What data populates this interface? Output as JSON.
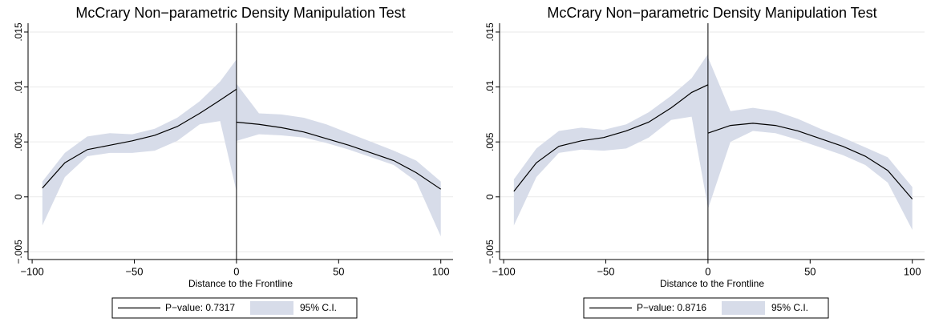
{
  "chart_data": [
    {
      "type": "line",
      "title": "McCrary Non−parametric Density Manipulation Test",
      "x_label": "Distance to the Frontline",
      "x": [
        -95,
        -84,
        -73,
        -62,
        -51,
        -40,
        -29,
        -18,
        -8,
        0,
        0,
        11,
        22,
        33,
        44,
        55,
        66,
        77,
        88,
        100
      ],
      "cutoff": 0,
      "series": [
        {
          "name": "P−value: 0.7317",
          "color": "#000000",
          "values": [
            0.0008,
            0.0031,
            0.0043,
            0.0047,
            0.0051,
            0.0056,
            0.0064,
            0.0076,
            0.0088,
            0.0098,
            0.0068,
            0.0066,
            0.0063,
            0.0059,
            0.0053,
            0.0047,
            0.004,
            0.0033,
            0.0022,
            0.0007
          ]
        },
        {
          "name": "95% C.I.",
          "color": "#d7dce9",
          "lower": [
            -0.0026,
            0.0018,
            0.0037,
            0.004,
            0.004,
            0.0042,
            0.0051,
            0.0066,
            0.0069,
            0.0005,
            0.0051,
            0.0057,
            0.0056,
            0.0054,
            0.0049,
            0.0043,
            0.0036,
            0.0029,
            0.0014,
            -0.0036
          ],
          "upper": [
            0.0014,
            0.004,
            0.0055,
            0.0058,
            0.0057,
            0.0062,
            0.0072,
            0.0087,
            0.0105,
            0.0125,
            0.0103,
            0.0076,
            0.0075,
            0.0072,
            0.0066,
            0.0058,
            0.005,
            0.0042,
            0.0033,
            0.0014
          ]
        }
      ],
      "xlim": [
        -102,
        106
      ],
      "ylim": [
        -0.0057,
        0.0158
      ],
      "xticks": [
        {
          "value": -100,
          "label": "−100"
        },
        {
          "value": -50,
          "label": "−50"
        },
        0,
        50,
        100
      ],
      "yticks": [
        {
          "value": -0.005,
          "label": "−.005"
        },
        0,
        {
          "value": 0.005,
          "label": ".005"
        },
        {
          "value": 0.01,
          "label": ".01"
        },
        {
          "value": 0.015,
          "label": ".015"
        }
      ],
      "grid": true
    },
    {
      "type": "line",
      "title": "McCrary Non−parametric Density Manipulation Test",
      "x_label": "Distance to the Frontline",
      "x": [
        -95,
        -84,
        -73,
        -62,
        -51,
        -40,
        -29,
        -18,
        -8,
        0,
        0,
        11,
        22,
        33,
        44,
        55,
        66,
        77,
        88,
        100
      ],
      "cutoff": 0,
      "series": [
        {
          "name": "P−value: 0.8716",
          "color": "#000000",
          "values": [
            0.0005,
            0.0031,
            0.0046,
            0.0051,
            0.0054,
            0.006,
            0.0068,
            0.0081,
            0.0095,
            0.0102,
            0.0058,
            0.0065,
            0.0067,
            0.0065,
            0.006,
            0.0053,
            0.0046,
            0.0037,
            0.0024,
            -0.0002
          ]
        },
        {
          "name": "95% C.I.",
          "color": "#d7dce9",
          "lower": [
            -0.0026,
            0.0018,
            0.004,
            0.0043,
            0.0042,
            0.0044,
            0.0054,
            0.007,
            0.0073,
            -0.001,
            -0.0011,
            0.005,
            0.006,
            0.0058,
            0.0052,
            0.0045,
            0.0038,
            0.0029,
            0.0013,
            -0.003
          ],
          "upper": [
            0.0016,
            0.0044,
            0.006,
            0.0063,
            0.0061,
            0.0066,
            0.0077,
            0.0092,
            0.0108,
            0.013,
            0.0127,
            0.0078,
            0.0081,
            0.0078,
            0.0071,
            0.0062,
            0.0054,
            0.0045,
            0.0036,
            0.0009
          ]
        }
      ],
      "xlim": [
        -102,
        106
      ],
      "ylim": [
        -0.0057,
        0.0158
      ],
      "xticks": [
        {
          "value": -100,
          "label": "−100"
        },
        {
          "value": -50,
          "label": "−50"
        },
        0,
        50,
        100
      ],
      "yticks": [
        {
          "value": -0.005,
          "label": "−.005"
        },
        0,
        {
          "value": 0.005,
          "label": ".005"
        },
        {
          "value": 0.01,
          "label": ".01"
        },
        {
          "value": 0.015,
          "label": ".015"
        }
      ],
      "grid": true
    }
  ]
}
